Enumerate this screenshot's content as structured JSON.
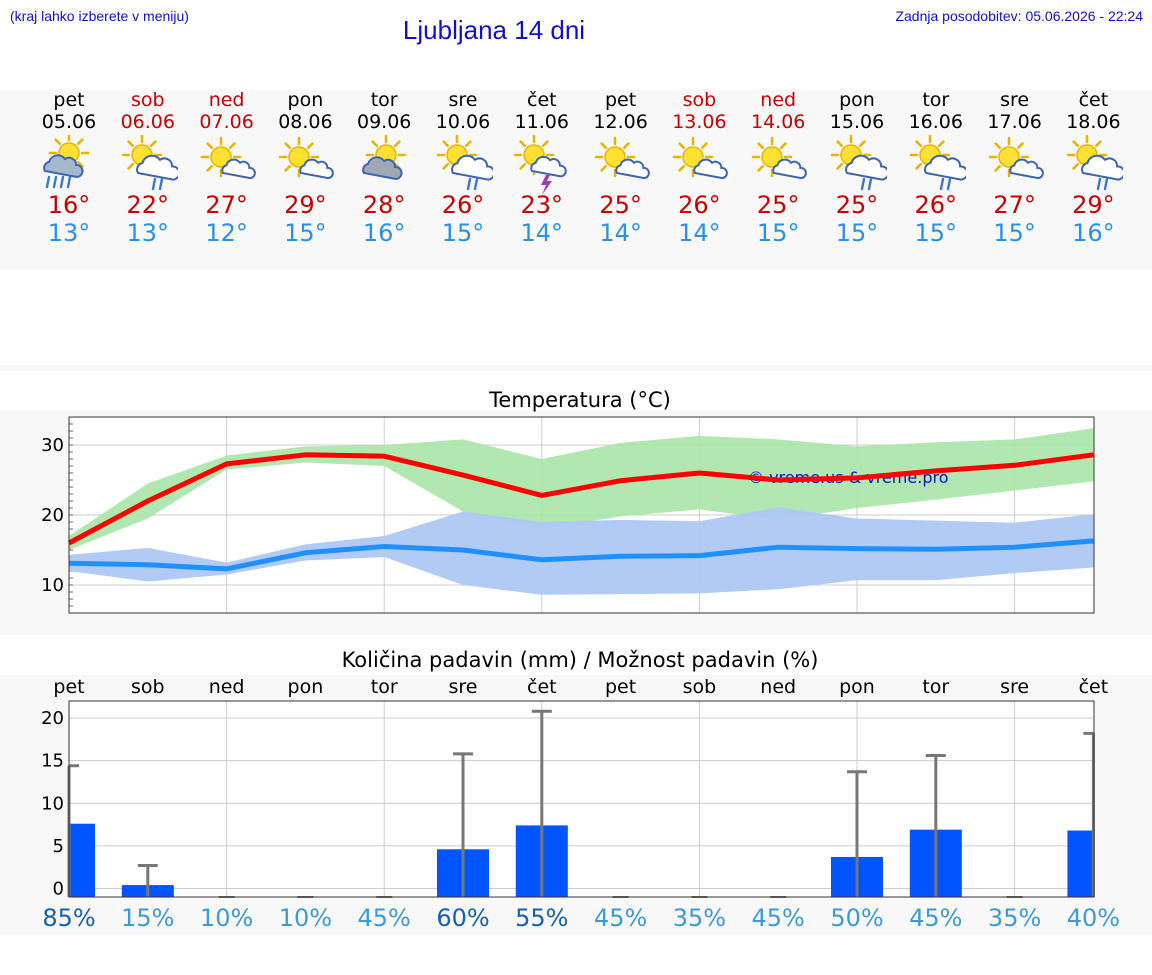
{
  "header": {
    "note": "(kraj lahko izberete v meniju)",
    "title": "Ljubljana 14 dni",
    "updated": "Zadnja posodobitev: 05.06.2026 - 22:24"
  },
  "days": [
    {
      "name": "pet",
      "date": "05.06",
      "weekend": false,
      "icon": "sun-cloud-heavy-rain-icon",
      "tmax": "16°",
      "tmin": "13°"
    },
    {
      "name": "sob",
      "date": "06.06",
      "weekend": true,
      "icon": "sun-cloud-rain-icon",
      "tmax": "22°",
      "tmin": "13°"
    },
    {
      "name": "ned",
      "date": "07.06",
      "weekend": true,
      "icon": "sun-small-cloud-icon",
      "tmax": "27°",
      "tmin": "12°"
    },
    {
      "name": "pon",
      "date": "08.06",
      "weekend": false,
      "icon": "sun-small-cloud-icon",
      "tmax": "29°",
      "tmin": "15°"
    },
    {
      "name": "tor",
      "date": "09.06",
      "weekend": false,
      "icon": "sun-grey-cloud-icon",
      "tmax": "28°",
      "tmin": "16°"
    },
    {
      "name": "sre",
      "date": "10.06",
      "weekend": false,
      "icon": "sun-cloud-rain-icon",
      "tmax": "26°",
      "tmin": "15°"
    },
    {
      "name": "čet",
      "date": "11.06",
      "weekend": false,
      "icon": "sun-thunder-icon",
      "tmax": "23°",
      "tmin": "14°"
    },
    {
      "name": "pet",
      "date": "12.06",
      "weekend": false,
      "icon": "sun-small-cloud-icon",
      "tmax": "25°",
      "tmin": "14°"
    },
    {
      "name": "sob",
      "date": "13.06",
      "weekend": true,
      "icon": "sun-small-cloud-icon",
      "tmax": "26°",
      "tmin": "14°"
    },
    {
      "name": "ned",
      "date": "14.06",
      "weekend": true,
      "icon": "sun-small-cloud-icon",
      "tmax": "25°",
      "tmin": "15°"
    },
    {
      "name": "pon",
      "date": "15.06",
      "weekend": false,
      "icon": "sun-cloud-rain-icon",
      "tmax": "25°",
      "tmin": "15°"
    },
    {
      "name": "tor",
      "date": "16.06",
      "weekend": false,
      "icon": "sun-cloud-rain-icon",
      "tmax": "26°",
      "tmin": "15°"
    },
    {
      "name": "sre",
      "date": "17.06",
      "weekend": false,
      "icon": "sun-small-cloud-icon",
      "tmax": "27°",
      "tmin": "15°"
    },
    {
      "name": "čet",
      "date": "18.06",
      "weekend": false,
      "icon": "sun-cloud-rain-icon",
      "tmax": "29°",
      "tmin": "16°"
    }
  ],
  "colors": {
    "title": "#1010c8",
    "max_line": "#ff0000",
    "max_band": "#a8e6a8",
    "min_line": "#1e90ff",
    "min_band": "#adc8f4",
    "precip_bar": "#0055ff",
    "error_bar": "#777777",
    "grid": "#cccccc"
  },
  "chart_data": [
    {
      "type": "line",
      "title": "Temperatura (°C)",
      "watermark": "© vreme.us & vreme.pro",
      "x": [
        "05.06",
        "06.06",
        "07.06",
        "08.06",
        "09.06",
        "10.06",
        "11.06",
        "12.06",
        "13.06",
        "14.06",
        "15.06",
        "16.06",
        "17.06",
        "18.06"
      ],
      "yticks": [
        10,
        20,
        30
      ],
      "ylim": [
        6,
        34
      ],
      "grid": true,
      "series": [
        {
          "role": "max",
          "values": [
            16,
            22,
            27.3,
            28.6,
            28.4,
            25.7,
            22.8,
            24.9,
            26,
            25,
            25.3,
            26.3,
            27.1,
            28.6
          ],
          "band_upper": [
            17,
            24.5,
            28.5,
            29.8,
            30,
            30.8,
            28,
            30.3,
            31.3,
            30.8,
            29.8,
            30.4,
            30.8,
            32.4
          ],
          "band_lower": [
            15,
            19.5,
            26.5,
            27.5,
            27,
            20.5,
            18,
            19.8,
            20.8,
            19.3,
            21,
            22.2,
            23.5,
            24.8
          ]
        },
        {
          "role": "min",
          "values": [
            13.1,
            12.9,
            12.3,
            14.6,
            15.5,
            15,
            13.6,
            14.1,
            14.2,
            15.4,
            15.2,
            15.1,
            15.4,
            16.3
          ],
          "band_upper": [
            14.3,
            15.3,
            13.2,
            15.8,
            17,
            20.5,
            19,
            19.3,
            19.1,
            21.1,
            19.5,
            19.2,
            18.9,
            20.1
          ],
          "band_lower": [
            12,
            10.5,
            11.5,
            13.5,
            14,
            10,
            8.6,
            8.7,
            8.8,
            9.4,
            10.7,
            10.7,
            11.7,
            12.5
          ]
        }
      ]
    },
    {
      "type": "bar",
      "title": "Količina padavin (mm) / Možnost padavin (%)",
      "categories": [
        "pet",
        "sob",
        "ned",
        "pon",
        "tor",
        "sre",
        "čet",
        "pet",
        "sob",
        "ned",
        "pon",
        "tor",
        "sre",
        "čet"
      ],
      "yticks": [
        0,
        5,
        10,
        15,
        20
      ],
      "ylim": [
        -1,
        22
      ],
      "grid": true,
      "values": [
        7.6,
        0.4,
        0,
        0,
        0,
        4.6,
        7.4,
        0,
        0,
        0,
        3.7,
        6.9,
        0,
        6.8
      ],
      "error_upper": [
        14.4,
        2.7,
        0,
        0,
        0,
        15.8,
        20.8,
        0,
        0,
        0,
        13.7,
        15.6,
        0,
        18.2
      ],
      "probability_labels": [
        "85%",
        "15%",
        "10%",
        "10%",
        "45%",
        "60%",
        "55%",
        "45%",
        "35%",
        "45%",
        "50%",
        "45%",
        "35%",
        "40%"
      ],
      "probability_values": [
        85,
        15,
        10,
        10,
        45,
        60,
        55,
        45,
        35,
        45,
        50,
        45,
        35,
        40
      ]
    }
  ]
}
